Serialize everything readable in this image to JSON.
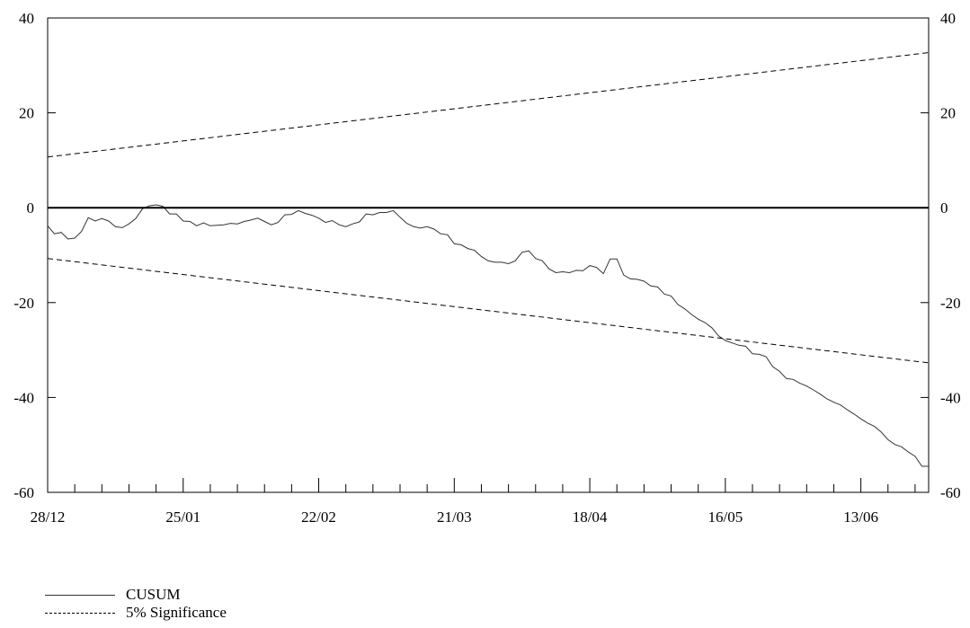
{
  "chart_data": {
    "type": "line",
    "y_ticks": [
      40,
      20,
      0,
      -20,
      -40,
      -60
    ],
    "ylim": [
      -60,
      40
    ],
    "x_tick_labels": [
      "28/12",
      "25/01",
      "22/02",
      "21/03",
      "18/04",
      "16/05",
      "13/06"
    ],
    "x_tick_label_index": [
      0,
      20,
      40,
      60,
      80,
      100,
      120
    ],
    "n_points": 131,
    "grid": false,
    "legend_position": "bottom-left",
    "series": [
      {
        "name": "CUSUM",
        "style": "solid",
        "color": "#333333",
        "values": [
          -3.8,
          -5.5,
          -5.2,
          -6.6,
          -6.4,
          -5.0,
          -2.1,
          -2.8,
          -2.3,
          -2.8,
          -4.0,
          -4.2,
          -3.4,
          -2.3,
          -0.2,
          0.4,
          0.6,
          0.3,
          -1.3,
          -1.3,
          -2.8,
          -2.9,
          -3.8,
          -3.2,
          -3.8,
          -3.7,
          -3.6,
          -3.3,
          -3.4,
          -2.9,
          -2.6,
          -2.2,
          -2.9,
          -3.6,
          -3.1,
          -1.5,
          -1.4,
          -0.6,
          -1.2,
          -1.6,
          -2.2,
          -3.1,
          -2.7,
          -3.6,
          -4.0,
          -3.4,
          -3.0,
          -1.3,
          -1.5,
          -1.0,
          -1.0,
          -0.6,
          -2.0,
          -3.3,
          -4.0,
          -4.3,
          -4.0,
          -4.5,
          -5.5,
          -5.7,
          -7.6,
          -7.8,
          -8.6,
          -9.0,
          -10.3,
          -11.2,
          -11.5,
          -11.5,
          -11.8,
          -11.2,
          -9.4,
          -9.1,
          -10.7,
          -11.2,
          -12.9,
          -13.7,
          -13.5,
          -13.7,
          -13.2,
          -13.3,
          -12.2,
          -12.6,
          -13.9,
          -10.8,
          -10.8,
          -14.2,
          -15.0,
          -15.1,
          -15.5,
          -16.5,
          -16.7,
          -18.2,
          -18.6,
          -20.4,
          -21.3,
          -22.5,
          -23.5,
          -24.2,
          -25.3,
          -27.0,
          -28.0,
          -28.5,
          -29.0,
          -29.2,
          -30.8,
          -30.9,
          -31.4,
          -33.5,
          -34.5,
          -36.0,
          -36.2,
          -37.0,
          -37.6,
          -38.4,
          -39.3,
          -40.3,
          -41.0,
          -41.6,
          -42.6,
          -43.5,
          -44.5,
          -45.4,
          -46.1,
          -47.3,
          -48.9,
          -49.9,
          -50.4,
          -51.5,
          -52.4,
          -54.5,
          -54.5
        ]
      },
      {
        "name": "5% Significance",
        "style": "dashed",
        "color": "#000000",
        "values_start": 10.7,
        "values_end": 32.7
      },
      {
        "name": "",
        "style": "dashed",
        "color": "#000000",
        "values_start": -10.7,
        "values_end": -32.7
      },
      {
        "name": "",
        "style": "solid",
        "color": "#000000",
        "values_start": 0,
        "values_end": 0
      }
    ]
  },
  "legend": {
    "items": [
      {
        "label": "CUSUM",
        "style": "solid"
      },
      {
        "label": "5% Significance",
        "style": "dashed"
      }
    ]
  }
}
